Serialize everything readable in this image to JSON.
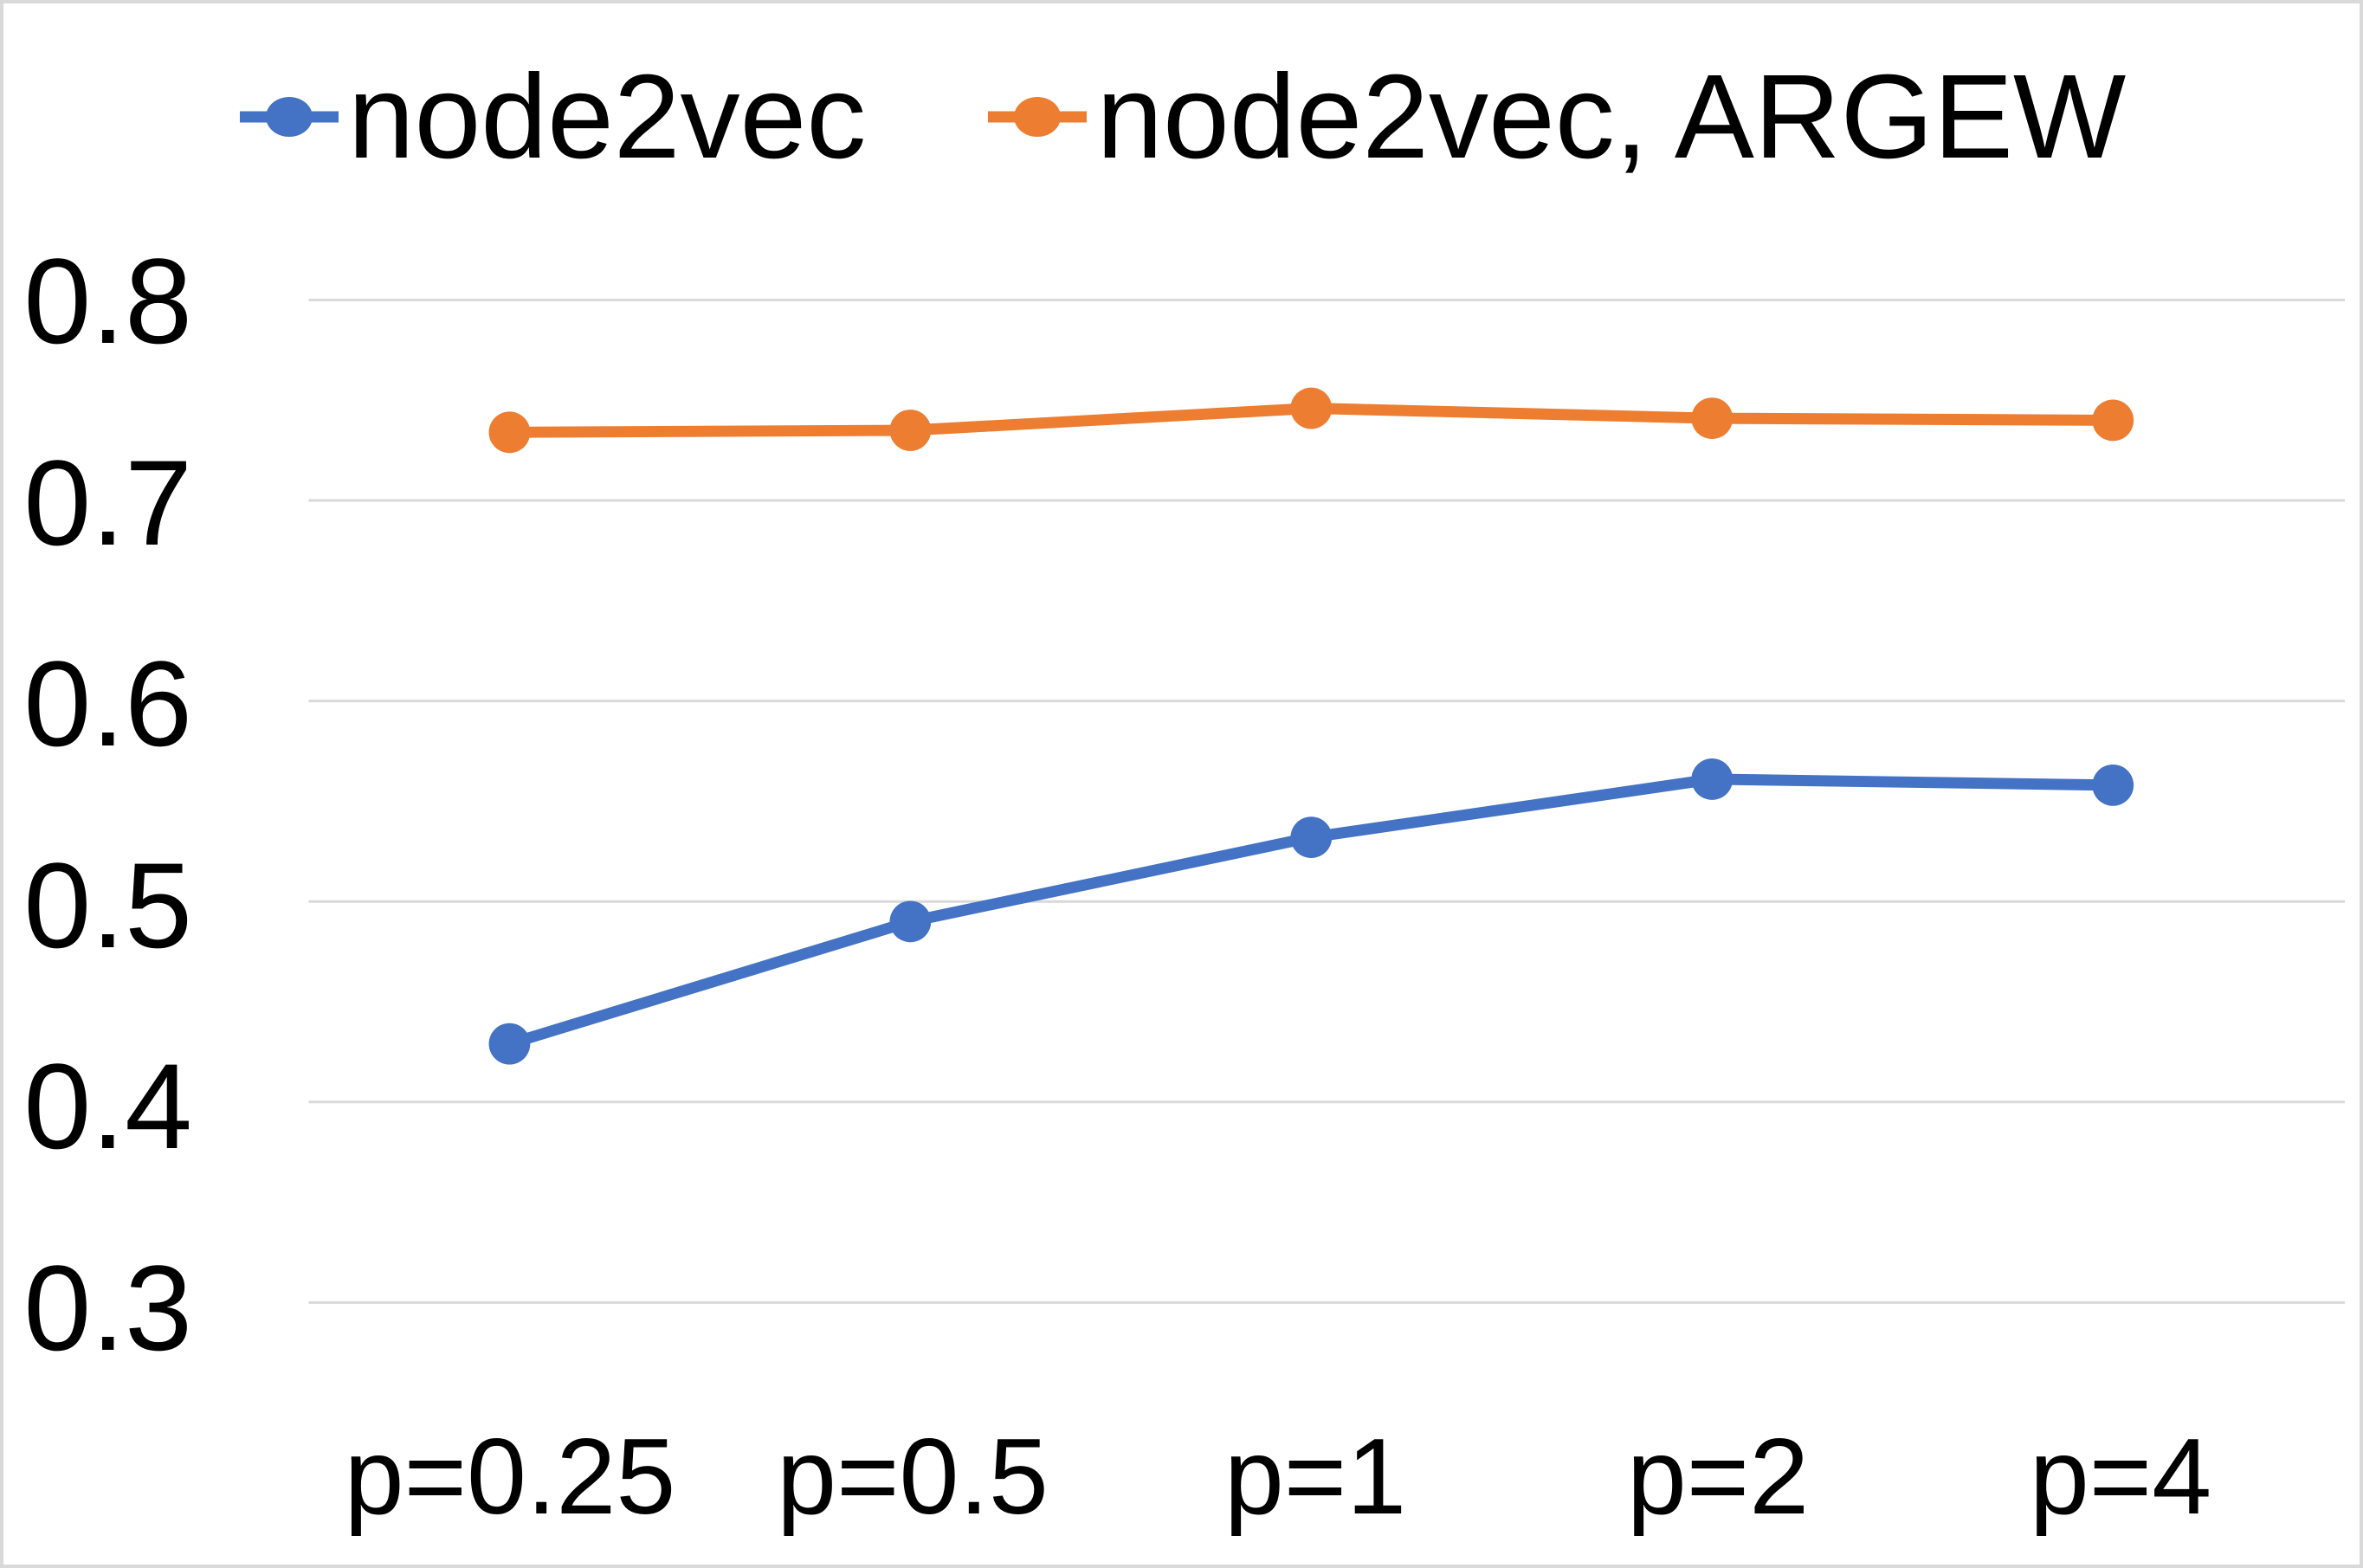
{
  "chart_data": {
    "type": "line",
    "categories": [
      "p=0.25",
      "p=0.5",
      "p=1",
      "p=2",
      "p=4"
    ],
    "series": [
      {
        "name": "node2vec",
        "color": "#4472C4",
        "values": [
          0.429,
          0.49,
          0.532,
          0.561,
          0.558
        ]
      },
      {
        "name": "node2vec, ARGEW",
        "color": "#ED7D31",
        "values": [
          0.734,
          0.735,
          0.746,
          0.741,
          0.74
        ]
      }
    ],
    "yticks": [
      "0.8",
      "0.7",
      "0.6",
      "0.5",
      "0.4",
      "0.3"
    ],
    "ylim": [
      0.3,
      0.8
    ],
    "ytick_step": 0.1,
    "grid": "horizontal",
    "gridline_color": "#d9d9d9",
    "border_color": "#d9d9d9",
    "text_color": "#000000",
    "legend_position": "top",
    "marker": "circle",
    "title": "",
    "xlabel": "",
    "ylabel": ""
  }
}
